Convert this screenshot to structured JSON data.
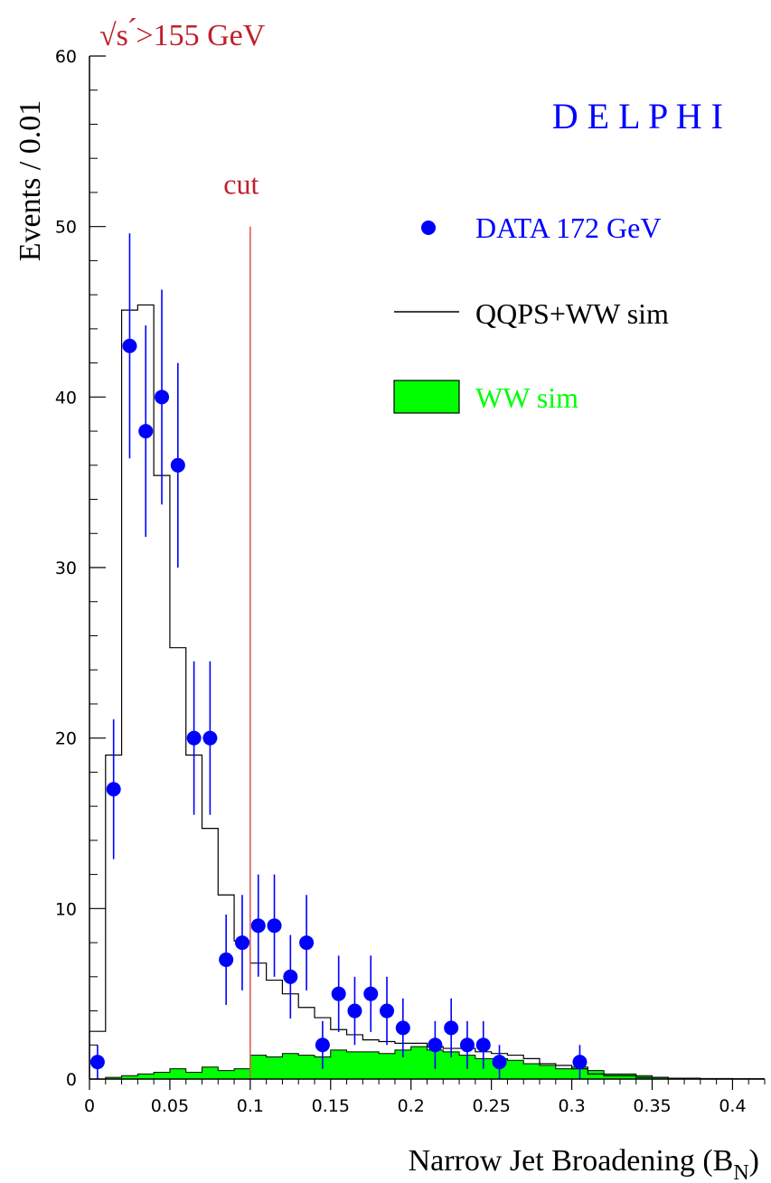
{
  "chart_data": {
    "type": "histogram",
    "corner_label": "√s ́>155 GeV",
    "experiment_label": "D E L P H I",
    "ylabel": "Events / 0.01",
    "xlabel": "Narrow Jet Broadening (B",
    "xlabel_sub": "N",
    "xlabel_close": ")",
    "xlim": [
      0,
      0.42
    ],
    "ylim": [
      0,
      60
    ],
    "xticks": [
      0,
      0.05,
      0.1,
      0.15,
      0.2,
      0.25,
      0.3,
      0.35,
      0.4
    ],
    "xtick_labels": [
      "0",
      "0.05",
      "0.1",
      "0.15",
      "0.2",
      "0.25",
      "0.3",
      "0.35",
      "0.4"
    ],
    "yticks": [
      0,
      10,
      20,
      30,
      40,
      50,
      60
    ],
    "ytick_labels": [
      "0",
      "10",
      "20",
      "30",
      "40",
      "50",
      "60"
    ],
    "cut": {
      "label": "cut",
      "x": 0.1,
      "y_top": 50
    },
    "bin_width": 0.01,
    "series": [
      {
        "name": "DATA 172 GeV",
        "kind": "points",
        "color": "#0000ff",
        "x": [
          0.005,
          0.015,
          0.025,
          0.035,
          0.045,
          0.055,
          0.065,
          0.075,
          0.085,
          0.095,
          0.105,
          0.115,
          0.125,
          0.135,
          0.145,
          0.155,
          0.165,
          0.175,
          0.185,
          0.195,
          0.215,
          0.225,
          0.235,
          0.245,
          0.255,
          0.305
        ],
        "y": [
          1,
          17,
          43,
          38,
          40,
          36,
          20,
          20,
          7,
          8,
          9,
          9,
          6,
          8,
          2,
          5,
          4,
          5,
          4,
          3,
          2,
          3,
          2,
          2,
          1,
          1
        ],
        "err": [
          1,
          4.1,
          6.6,
          6.2,
          6.3,
          6.0,
          4.5,
          4.5,
          2.65,
          2.8,
          3.0,
          3.0,
          2.45,
          2.8,
          1.4,
          2.24,
          2.0,
          2.24,
          2.0,
          1.73,
          1.4,
          1.73,
          1.4,
          1.4,
          1.0,
          1.0
        ]
      },
      {
        "name": "QQPS+WW sim",
        "kind": "step",
        "color": "#000000",
        "x_edges": [
          0,
          0.01,
          0.02,
          0.03,
          0.04,
          0.05,
          0.06,
          0.07,
          0.08,
          0.09,
          0.1,
          0.11,
          0.12,
          0.13,
          0.14,
          0.15,
          0.16,
          0.17,
          0.18,
          0.19,
          0.2,
          0.21,
          0.22,
          0.23,
          0.24,
          0.25,
          0.26,
          0.27,
          0.28,
          0.29,
          0.3,
          0.31,
          0.32,
          0.33,
          0.34,
          0.35,
          0.36,
          0.37,
          0.38,
          0.39,
          0.4,
          0.41,
          0.42
        ],
        "values": [
          2.8,
          19.0,
          45.1,
          45.4,
          35.4,
          25.3,
          19.0,
          14.7,
          10.8,
          8.1,
          6.8,
          5.8,
          5.0,
          4.2,
          3.6,
          2.9,
          2.6,
          2.3,
          2.2,
          2.1,
          2.1,
          1.9,
          1.8,
          1.8,
          1.6,
          1.5,
          1.4,
          1.2,
          0.9,
          0.8,
          0.6,
          0.3,
          0.2,
          0.2,
          0.1,
          0.1,
          0.05,
          0.05,
          0.03,
          0.03,
          0.02,
          0.02
        ]
      },
      {
        "name": "WW sim",
        "kind": "filled-step",
        "color": "#00ff00",
        "x_edges": [
          0,
          0.01,
          0.02,
          0.03,
          0.04,
          0.05,
          0.06,
          0.07,
          0.08,
          0.09,
          0.1,
          0.11,
          0.12,
          0.13,
          0.14,
          0.15,
          0.16,
          0.17,
          0.18,
          0.19,
          0.2,
          0.21,
          0.22,
          0.23,
          0.24,
          0.25,
          0.26,
          0.27,
          0.28,
          0.29,
          0.3,
          0.31,
          0.32,
          0.33,
          0.34,
          0.35,
          0.36,
          0.37,
          0.38,
          0.39,
          0.4,
          0.41,
          0.42
        ],
        "values": [
          0.0,
          0.1,
          0.2,
          0.3,
          0.4,
          0.6,
          0.4,
          0.7,
          0.5,
          0.6,
          1.4,
          1.3,
          1.5,
          1.4,
          1.3,
          1.7,
          1.6,
          1.6,
          1.5,
          1.7,
          1.9,
          1.7,
          1.6,
          1.4,
          1.2,
          1.2,
          1.1,
          0.9,
          0.8,
          0.6,
          0.7,
          0.5,
          0.3,
          0.3,
          0.2,
          0.1,
          0.05,
          0.03,
          0.02,
          0.01,
          0.01,
          0.0
        ]
      }
    ],
    "legend_placement": "right",
    "grid": false
  }
}
